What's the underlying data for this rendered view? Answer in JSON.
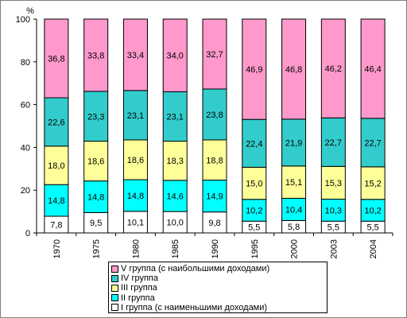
{
  "chart_data": {
    "type": "bar",
    "stacked": true,
    "categories": [
      "1970",
      "1975",
      "1980",
      "1985",
      "1990",
      "1995",
      "2000",
      "2003",
      "2004"
    ],
    "y_unit": "%",
    "ylim": [
      0,
      100
    ],
    "y_ticks": [
      "0",
      "20",
      "40",
      "60",
      "80",
      "100"
    ],
    "grid": false,
    "legend_position": "bottom",
    "series": [
      {
        "name": "I группа (с наименьшими доходами)",
        "color": "#ffffff",
        "values": [
          7.8,
          9.5,
          10.1,
          10.0,
          9.8,
          5.5,
          5.8,
          5.5,
          5.5
        ],
        "labels": [
          "7,8",
          "9,5",
          "10,1",
          "10,0",
          "9,8",
          "5,5",
          "5,8",
          "5,5",
          "5,5"
        ]
      },
      {
        "name": "II группа",
        "color": "#00ffff",
        "values": [
          14.8,
          14.8,
          14.8,
          14.6,
          14.9,
          10.2,
          10.4,
          10.3,
          10.2
        ],
        "labels": [
          "14,8",
          "14,8",
          "14,8",
          "14,6",
          "14,9",
          "10,2",
          "10,4",
          "10,3",
          "10,2"
        ]
      },
      {
        "name": "III группа",
        "color": "#ffff99",
        "values": [
          18.0,
          18.6,
          18.6,
          18.3,
          18.8,
          15.0,
          15.1,
          15.3,
          15.2
        ],
        "labels": [
          "18,0",
          "18,6",
          "18,6",
          "18,3",
          "18,8",
          "15,0",
          "15,1",
          "15,3",
          "15,2"
        ]
      },
      {
        "name": "IV группа",
        "color": "#33cccc",
        "values": [
          22.6,
          23.3,
          23.1,
          23.1,
          23.8,
          22.4,
          21.9,
          22.7,
          22.7
        ],
        "labels": [
          "22,6",
          "23,3",
          "23,1",
          "23,1",
          "23,8",
          "22,4",
          "21,9",
          "22,7",
          "22,7"
        ]
      },
      {
        "name": "V группа (с наибольшими доходами)",
        "color": "#ff99cc",
        "values": [
          36.8,
          33.8,
          33.4,
          34.0,
          32.7,
          46.9,
          46.8,
          46.2,
          46.4
        ],
        "labels": [
          "36,8",
          "33,8",
          "33,4",
          "34,0",
          "32,7",
          "46,9",
          "46,8",
          "46,2",
          "46,4"
        ]
      }
    ]
  },
  "legend": {
    "items": [
      {
        "label": "V группа (с наибольшими доходами)",
        "color": "#ff99cc"
      },
      {
        "label": "IV группа",
        "color": "#33cccc"
      },
      {
        "label": "III группа",
        "color": "#ffff99"
      },
      {
        "label": "II группа",
        "color": "#00ffff"
      },
      {
        "label": "I группа (с наименьшими доходами)",
        "color": "#ffffff"
      }
    ]
  }
}
